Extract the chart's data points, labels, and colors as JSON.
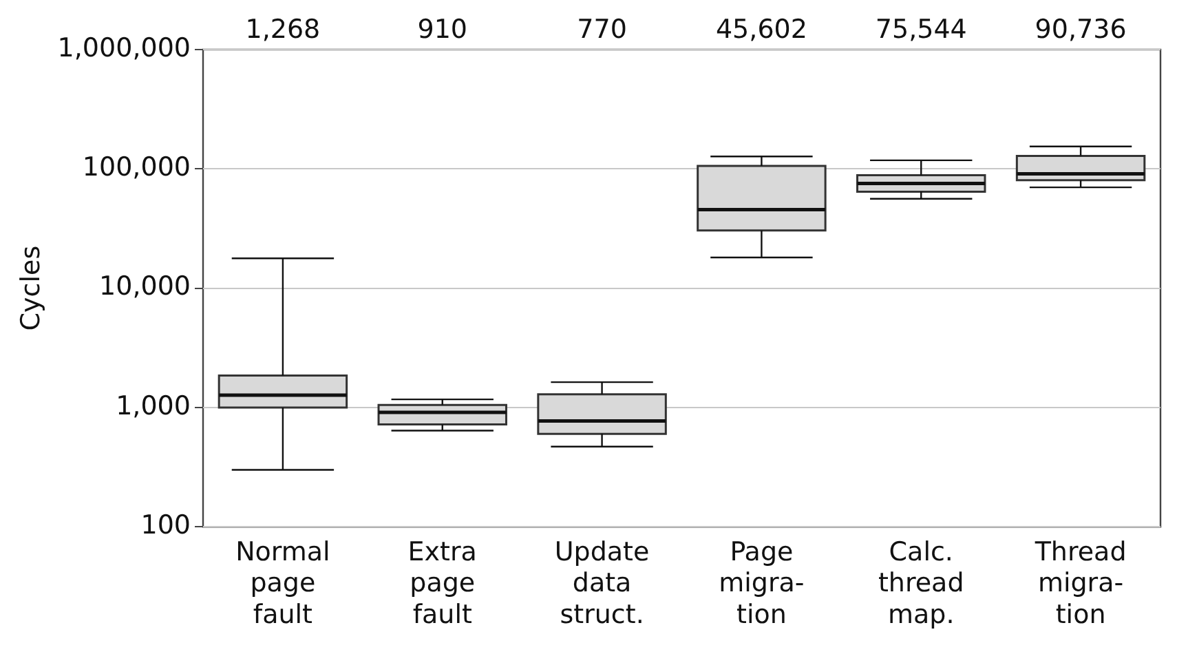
{
  "chart_data": {
    "type": "box",
    "ylabel": "Cycles",
    "categories": [
      "Normal\npage\nfault",
      "Extra\npage\nfault",
      "Update\ndata\nstruct.",
      "Page\nmigra-\ntion",
      "Calc.\nthread\nmap.",
      "Thread\nmigra-\ntion"
    ],
    "color": "#d9d9d9",
    "boxes": [
      {
        "low": 300,
        "q1": 1000,
        "median": 1268,
        "q3": 1850,
        "high": 17800
      },
      {
        "low": 640,
        "q1": 720,
        "median": 910,
        "q3": 1050,
        "high": 1170
      },
      {
        "low": 470,
        "q1": 600,
        "median": 770,
        "q3": 1290,
        "high": 1630
      },
      {
        "low": 18100,
        "q1": 30500,
        "median": 45602,
        "q3": 106000,
        "high": 127000
      },
      {
        "low": 56100,
        "q1": 64400,
        "median": 75544,
        "q3": 88500,
        "high": 118000
      },
      {
        "low": 70000,
        "q1": 80400,
        "median": 90736,
        "q3": 128500,
        "high": 154000
      }
    ],
    "annotations": [
      "1,268",
      "910",
      "770",
      "45,602",
      "75,544",
      "90,736"
    ],
    "log": "y",
    "ylim": [
      100,
      1000000
    ],
    "yticks": [
      {
        "value": 100,
        "label": "100"
      },
      {
        "value": 1000,
        "label": "1,000"
      },
      {
        "value": 10000,
        "label": "10,000"
      },
      {
        "value": 100000,
        "label": "100,000"
      },
      {
        "value": 1000000,
        "label": "1,000,000"
      }
    ],
    "grid": "y",
    "legend": false
  }
}
